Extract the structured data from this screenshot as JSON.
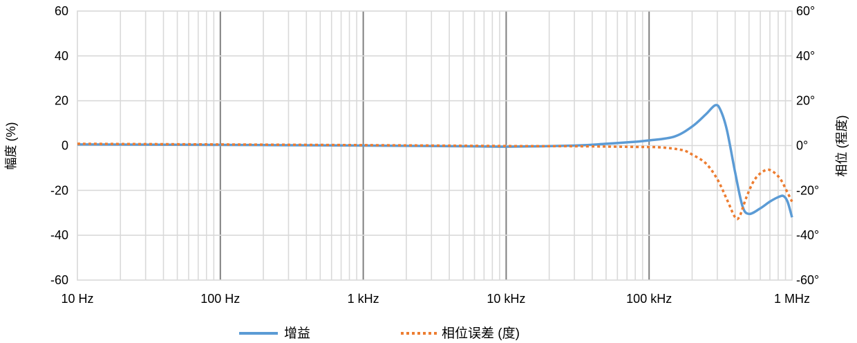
{
  "chart_data": {
    "type": "line",
    "x_scale": "log",
    "xlim_hz": [
      10,
      1000000
    ],
    "x_tick_values_hz": [
      10,
      100,
      1000,
      10000,
      100000,
      1000000
    ],
    "x_tick_labels": [
      "10 Hz",
      "100 Hz",
      "1 kHz",
      "10 kHz",
      "100 kHz",
      "1 MHz"
    ],
    "y_left": {
      "label": "幅度 (%)",
      "lim": [
        -60,
        60
      ],
      "ticks": [
        60,
        40,
        20,
        0,
        -20,
        -40,
        -60
      ],
      "tick_labels": [
        "60",
        "40",
        "20",
        "0",
        "-20",
        "-40",
        "-60"
      ]
    },
    "y_right": {
      "label": "相位 (程度)",
      "lim": [
        -60,
        60
      ],
      "ticks": [
        60,
        40,
        20,
        0,
        -20,
        -40,
        -60
      ],
      "tick_labels": [
        "60°",
        "40°",
        "20°",
        "0°",
        "-20°",
        "-40°",
        "-60°"
      ]
    },
    "grid": "both",
    "legend_position": "bottom",
    "series": [
      {
        "name": "增益",
        "axis": "left",
        "color": "#5b9bd5",
        "style": "solid",
        "points": [
          [
            10,
            0.5
          ],
          [
            100,
            0.3
          ],
          [
            1000,
            0
          ],
          [
            5000,
            -0.3
          ],
          [
            10000,
            -0.5
          ],
          [
            30000,
            0
          ],
          [
            50000,
            0.8
          ],
          [
            80000,
            1.7
          ],
          [
            100000,
            2.3
          ],
          [
            150000,
            4
          ],
          [
            200000,
            8.5
          ],
          [
            250000,
            14
          ],
          [
            290000,
            18
          ],
          [
            315000,
            16
          ],
          [
            350000,
            7
          ],
          [
            400000,
            -12
          ],
          [
            450000,
            -27
          ],
          [
            500000,
            -30.5
          ],
          [
            600000,
            -28
          ],
          [
            700000,
            -25
          ],
          [
            800000,
            -23
          ],
          [
            870000,
            -22.5
          ],
          [
            930000,
            -25
          ],
          [
            1000000,
            -32
          ]
        ]
      },
      {
        "name": "相位误差 (度)",
        "axis": "right",
        "color": "#ed7d31",
        "style": "dotted",
        "points": [
          [
            10,
            0.8
          ],
          [
            100,
            0.5
          ],
          [
            1000,
            0.2
          ],
          [
            10000,
            -0.2
          ],
          [
            30000,
            -0.3
          ],
          [
            80000,
            -0.6
          ],
          [
            120000,
            -0.8
          ],
          [
            170000,
            -2
          ],
          [
            200000,
            -4
          ],
          [
            250000,
            -8
          ],
          [
            300000,
            -15
          ],
          [
            350000,
            -24
          ],
          [
            400000,
            -32
          ],
          [
            430000,
            -31.5
          ],
          [
            480000,
            -23
          ],
          [
            550000,
            -15
          ],
          [
            650000,
            -11
          ],
          [
            730000,
            -11.5
          ],
          [
            830000,
            -15
          ],
          [
            930000,
            -21
          ],
          [
            1000000,
            -25
          ]
        ]
      }
    ]
  }
}
